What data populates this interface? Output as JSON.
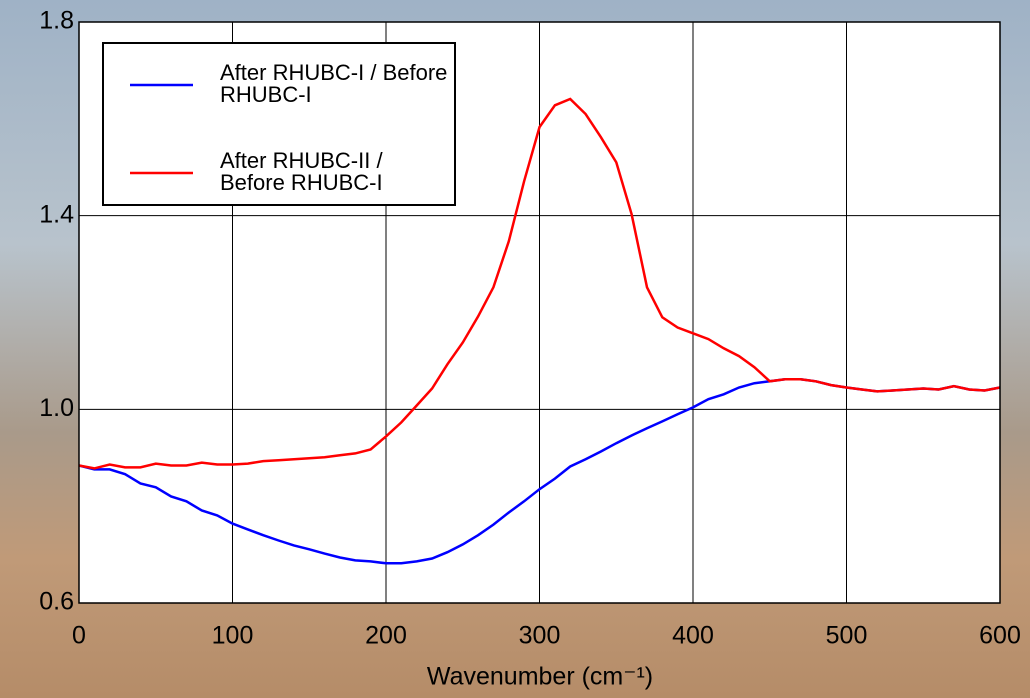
{
  "chart_data": {
    "type": "line",
    "x_label": "Wavenumber (cm⁻¹)",
    "x": [
      0,
      10,
      20,
      30,
      40,
      50,
      60,
      70,
      80,
      90,
      100,
      110,
      120,
      130,
      140,
      150,
      160,
      170,
      180,
      190,
      200,
      210,
      220,
      230,
      240,
      250,
      260,
      270,
      280,
      290,
      300,
      310,
      320,
      330,
      340,
      350,
      360,
      370,
      380,
      390,
      400,
      410,
      420,
      430,
      440,
      450,
      460,
      470,
      480,
      490,
      500,
      510,
      520,
      530,
      540,
      550,
      560,
      570,
      580,
      590,
      600
    ],
    "series": [
      {
        "name": "After RHUBC-I / Before RHUBC-I",
        "color": "#0000ff",
        "values": [
          0.884,
          0.876,
          0.876,
          0.866,
          0.847,
          0.839,
          0.82,
          0.81,
          0.791,
          0.781,
          0.764,
          0.752,
          0.74,
          0.729,
          0.719,
          0.711,
          0.702,
          0.694,
          0.688,
          0.686,
          0.682,
          0.682,
          0.686,
          0.692,
          0.705,
          0.721,
          0.74,
          0.762,
          0.787,
          0.81,
          0.835,
          0.857,
          0.882,
          0.897,
          0.913,
          0.93,
          0.946,
          0.961,
          0.975,
          0.99,
          1.004,
          1.021,
          1.031,
          1.045,
          1.054,
          1.058,
          1.062,
          1.062,
          1.058,
          1.05,
          1.045,
          1.041,
          1.037,
          1.039,
          1.041,
          1.043,
          1.041,
          1.048,
          1.041,
          1.039,
          1.045
        ]
      },
      {
        "name": "After RHUBC-II / Before RHUBC-I",
        "color": "#ff0000",
        "values": [
          0.884,
          0.878,
          0.886,
          0.88,
          0.88,
          0.888,
          0.884,
          0.884,
          0.89,
          0.886,
          0.886,
          0.888,
          0.893,
          0.895,
          0.897,
          0.899,
          0.901,
          0.905,
          0.909,
          0.917,
          0.944,
          0.973,
          1.008,
          1.043,
          1.093,
          1.138,
          1.192,
          1.252,
          1.347,
          1.471,
          1.583,
          1.628,
          1.641,
          1.61,
          1.562,
          1.51,
          1.403,
          1.252,
          1.19,
          1.169,
          1.157,
          1.145,
          1.126,
          1.11,
          1.087,
          1.058,
          1.062,
          1.062,
          1.058,
          1.05,
          1.045,
          1.041,
          1.037,
          1.039,
          1.041,
          1.043,
          1.041,
          1.048,
          1.041,
          1.039,
          1.045
        ]
      }
    ],
    "xlim": [
      0,
      600
    ],
    "xticks": [
      0,
      100,
      200,
      300,
      400,
      500,
      600
    ],
    "ylim": [
      0.6,
      1.8
    ],
    "yticks": [
      0.6,
      {
        "value": 1,
        "label": "1.0"
      },
      1.4,
      1.8
    ],
    "grid": true,
    "legend": "upper left"
  }
}
